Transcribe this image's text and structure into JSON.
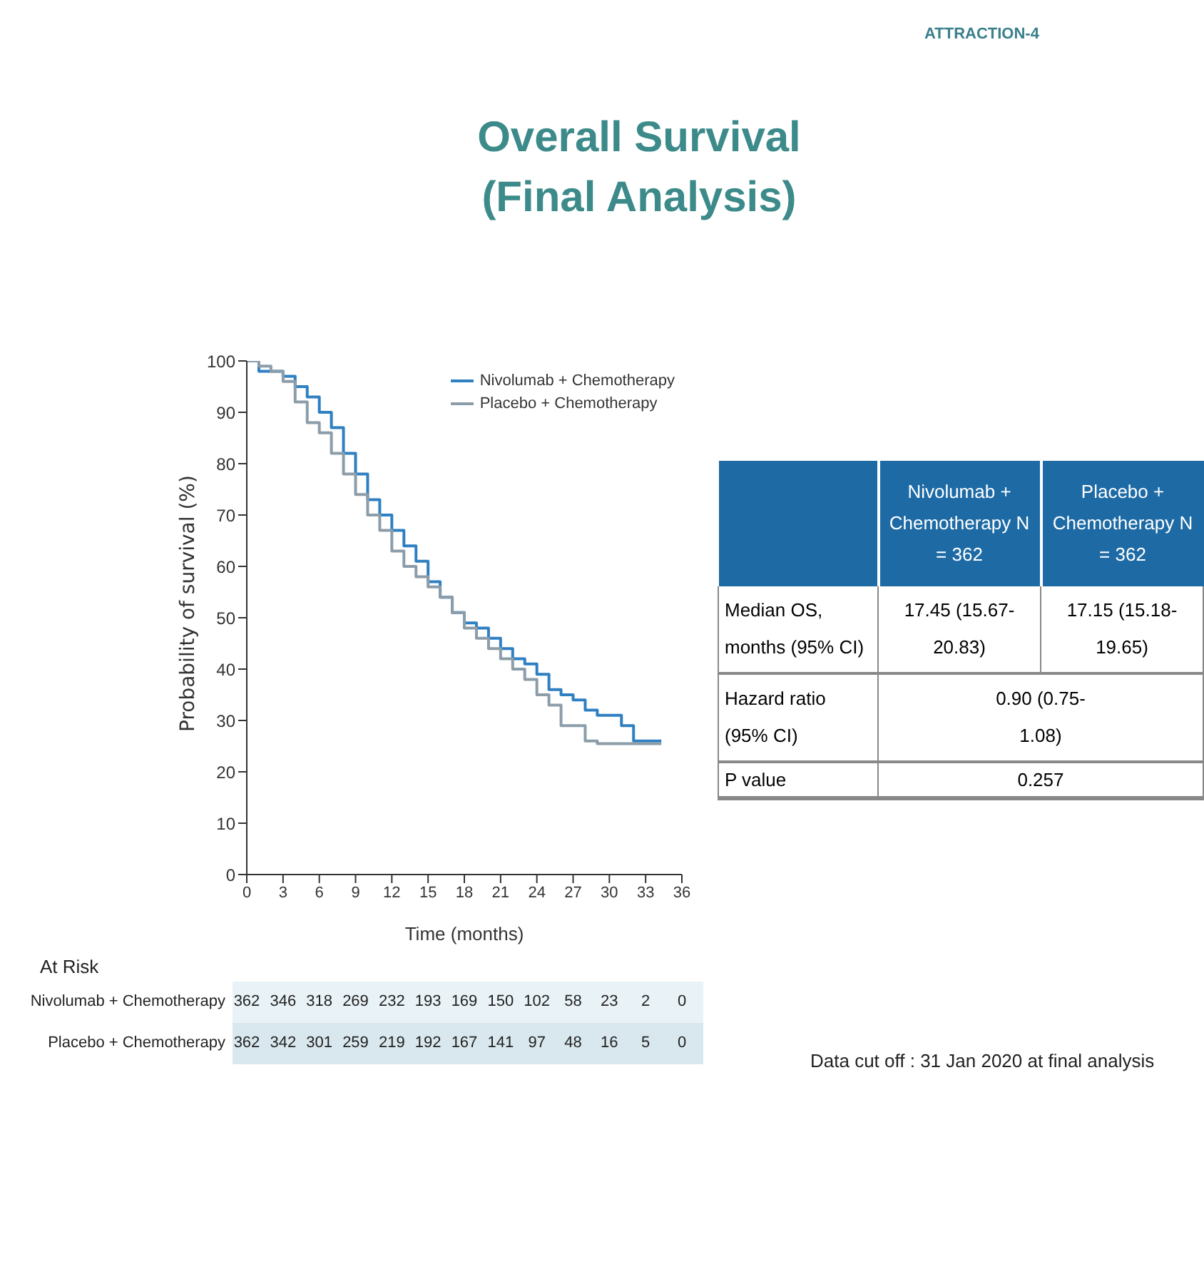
{
  "chart_data": {
    "type": "step",
    "title": "Overall Survival (Final Analysis)",
    "xlabel": "Time (months)",
    "ylabel": "Probability of survival (%)",
    "xlim": [
      0,
      36
    ],
    "xticks": [
      0,
      3,
      6,
      9,
      12,
      15,
      18,
      21,
      24,
      27,
      30,
      33,
      36
    ],
    "ylim": [
      0,
      100
    ],
    "yticks": [
      0,
      10,
      20,
      30,
      40,
      50,
      60,
      70,
      80,
      90,
      100
    ],
    "grid": false,
    "legend": "top right",
    "marker": "none",
    "series": [
      {
        "name": "Nivolumab + Chemotherapy",
        "color": "#2f80c2",
        "x": [
          0,
          1,
          2,
          3,
          4,
          5,
          6,
          7,
          8,
          9,
          10,
          11,
          12,
          13,
          14,
          15,
          16,
          17,
          18,
          19,
          20,
          21,
          22,
          23,
          24,
          25,
          26,
          27,
          28,
          29,
          30,
          31,
          32,
          33,
          34.3
        ],
        "values": [
          100,
          98,
          98,
          97,
          95,
          93,
          90,
          87,
          82,
          78,
          73,
          70,
          67,
          64,
          61,
          57,
          54,
          51,
          49,
          48,
          46,
          44,
          42,
          41,
          39,
          36,
          35,
          34,
          32,
          31,
          31,
          29,
          26,
          26,
          26
        ]
      },
      {
        "name": "Placebo + Chemotherapy",
        "color": "#8c9daa",
        "x": [
          0,
          1,
          2,
          3,
          4,
          5,
          6,
          7,
          8,
          9,
          10,
          11,
          12,
          13,
          14,
          15,
          16,
          17,
          18,
          19,
          20,
          21,
          22,
          23,
          24,
          25,
          26,
          27,
          28,
          29,
          30,
          33,
          34.3
        ],
        "values": [
          100,
          99,
          98,
          96,
          92,
          88,
          86,
          82,
          78,
          74,
          70,
          67,
          63,
          60,
          58,
          56,
          54,
          51,
          48,
          46,
          44,
          42,
          40,
          38,
          35,
          33,
          29,
          29,
          26,
          25.5,
          25.5,
          25.5,
          25.5
        ]
      }
    ],
    "annotations": [
      "ATTRACTION-4",
      "At Risk",
      "Nivolumab + Chemotherapy",
      "362",
      "346",
      "318",
      "269",
      "232",
      "193",
      "169",
      "150",
      "102",
      "58",
      "23",
      "2",
      "0",
      "Placebo + Chemotherapy",
      "362",
      "342",
      "301",
      "259",
      "219",
      "192",
      "167",
      "141",
      "97",
      "48",
      "16",
      "5",
      "0",
      "Nivolumab + Chemotherapy N = 362",
      "Placebo + Chemotherapy N = 362",
      "Median OS, months (95% CI)",
      "17.45 (15.67-20.83)",
      "17.15 (15.18-19.65)",
      "Hazard ratio (95% CI)",
      "0.90 (0.75-1.08)",
      "P value",
      "0.257",
      "Data cut off : 31 Jan 2020 at final analysis"
    ]
  }
}
